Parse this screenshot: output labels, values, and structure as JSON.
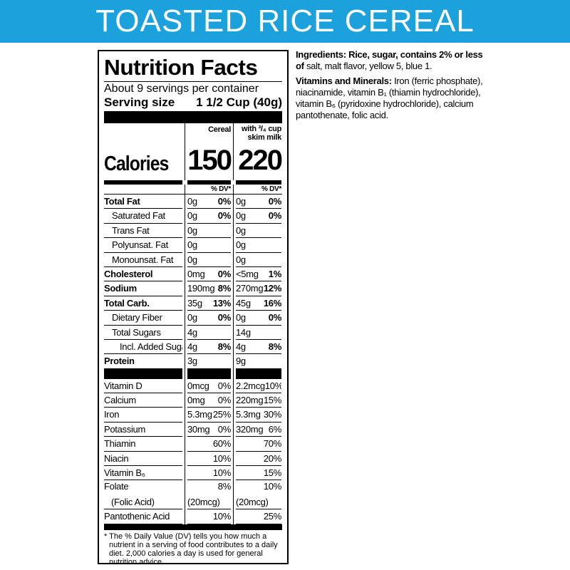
{
  "banner": "TOASTED RICE CEREAL",
  "label": {
    "title": "Nutrition Facts",
    "servings": "About 9 servings per container",
    "serving_size_label": "Serving size",
    "serving_size_value": "1 1/2 Cup (40g)",
    "col1": "Cereal",
    "col2_line1": "with ³/₄ cup",
    "col2_line2": "skim milk",
    "calories_label": "Calories",
    "calories_cereal": "150",
    "calories_milk": "220",
    "dv_header": "% DV*",
    "nutrients": [
      {
        "name": "Total Fat",
        "bold": true,
        "indent": 0,
        "a": "0g",
        "ap": "0%",
        "b": "0g",
        "bp": "0%"
      },
      {
        "name": "Saturated Fat",
        "bold": false,
        "indent": 1,
        "a": "0g",
        "ap": "0%",
        "b": "0g",
        "bp": "0%"
      },
      {
        "name": "Trans Fat",
        "bold": false,
        "indent": 1,
        "a": "0g",
        "ap": "",
        "b": "0g",
        "bp": ""
      },
      {
        "name": "Polyunsat. Fat",
        "bold": false,
        "indent": 1,
        "a": "0g",
        "ap": "",
        "b": "0g",
        "bp": ""
      },
      {
        "name": "Monounsat. Fat",
        "bold": false,
        "indent": 1,
        "a": "0g",
        "ap": "",
        "b": "0g",
        "bp": ""
      },
      {
        "name": "Cholesterol",
        "bold": true,
        "indent": 0,
        "a": "0mg",
        "ap": "0%",
        "b": "<5mg",
        "bp": "1%"
      },
      {
        "name": "Sodium",
        "bold": true,
        "indent": 0,
        "a": "190mg",
        "ap": "8%",
        "b": "270mg",
        "bp": "12%"
      },
      {
        "name": "Total Carb.",
        "bold": true,
        "indent": 0,
        "a": "35g",
        "ap": "13%",
        "b": "45g",
        "bp": "16%"
      },
      {
        "name": "Dietary Fiber",
        "bold": false,
        "indent": 1,
        "a": "0g",
        "ap": "0%",
        "b": "0g",
        "bp": "0%"
      },
      {
        "name": "Total Sugars",
        "bold": false,
        "indent": 1,
        "a": "4g",
        "ap": "",
        "b": "14g",
        "bp": ""
      },
      {
        "name": "Incl. Added Sugars",
        "bold": false,
        "indent": 2,
        "a": "4g",
        "ap": "8%",
        "b": "4g",
        "bp": "8%"
      },
      {
        "name": "Protein",
        "bold": true,
        "indent": 0,
        "a": "3g",
        "ap": "",
        "b": "9g",
        "bp": ""
      }
    ],
    "vitamins": [
      {
        "name": "Vitamin D",
        "a": "0mcg",
        "ap": "0%",
        "b": "2.2mcg",
        "bp": "10%"
      },
      {
        "name": "Calcium",
        "a": "0mg",
        "ap": "0%",
        "b": "220mg",
        "bp": "15%"
      },
      {
        "name": "Iron",
        "a": "5.3mg",
        "ap": "25%",
        "b": "5.3mg",
        "bp": "30%"
      },
      {
        "name": "Potassium",
        "a": "30mg",
        "ap": "0%",
        "b": "320mg",
        "bp": "6%"
      },
      {
        "name": "Thiamin",
        "a": "",
        "ap": "60%",
        "b": "",
        "bp": "70%"
      },
      {
        "name": "Niacin",
        "a": "",
        "ap": "10%",
        "b": "",
        "bp": "20%"
      },
      {
        "name": "Vitamin B₆",
        "a": "",
        "ap": "10%",
        "b": "",
        "bp": "15%"
      },
      {
        "name": "Folate",
        "name2": "(Folic Acid)",
        "a": "(20mcg)",
        "ap": "8%",
        "b": "(20mcg)",
        "bp": "10%"
      },
      {
        "name": "Pantothenic Acid",
        "a": "",
        "ap": "10%",
        "b": "",
        "bp": "25%"
      }
    ],
    "footnote": "* The % Daily Value (DV) tells you how much a nutrient in a serving of food contributes to a daily diet. 2,000 calories a day is used for general nutrition advice."
  },
  "ingredients": {
    "label": "Ingredients: Rice, sugar, contains 2% or less of",
    "text": " salt, malt flavor, yellow 5, blue 1.",
    "vm_label": "Vitamins and Minerals:",
    "vm_text": " Iron (ferric phosphate), niacinamide, vitamin B₁ (thiamin hydrochloride), vitamin B₆ (pyridoxine hydrochloride), calcium pantothenate, folic acid."
  }
}
